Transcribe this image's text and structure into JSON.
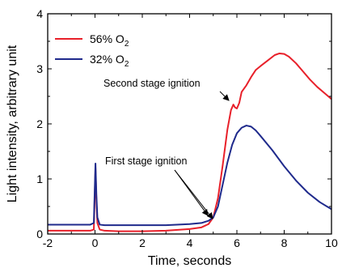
{
  "chart_data": {
    "type": "line",
    "xlabel": "Time, seconds",
    "ylabel": "Light intensity, arbitrary unit",
    "xlim": [
      -2,
      10
    ],
    "ylim": [
      0,
      4
    ],
    "xticks": [
      -2,
      0,
      2,
      4,
      6,
      8,
      10
    ],
    "yticks": [
      0,
      1,
      2,
      3,
      4
    ],
    "xtick_labels": [
      "-2",
      "0",
      "2",
      "4",
      "6",
      "8",
      "10"
    ],
    "ytick_labels": [
      "0",
      "1",
      "2",
      "3",
      "4"
    ],
    "legend_position": "top-left",
    "series": [
      {
        "name": "56% O",
        "name_subscript": "2",
        "color": "#e8202a",
        "x": [
          -2,
          -1,
          -0.2,
          -0.05,
          0.02,
          0.06,
          0.1,
          0.2,
          0.4,
          1,
          2,
          3,
          4,
          4.5,
          4.8,
          5.0,
          5.2,
          5.4,
          5.6,
          5.75,
          5.85,
          5.92,
          6.0,
          6.1,
          6.2,
          6.4,
          6.6,
          6.8,
          7.0,
          7.3,
          7.6,
          7.8,
          8.0,
          8.2,
          8.5,
          8.8,
          9.1,
          9.4,
          9.7,
          10.0
        ],
        "y": [
          0.06,
          0.06,
          0.06,
          0.08,
          1.2,
          0.6,
          0.2,
          0.08,
          0.06,
          0.05,
          0.05,
          0.06,
          0.09,
          0.12,
          0.18,
          0.3,
          0.65,
          1.25,
          1.9,
          2.25,
          2.35,
          2.3,
          2.28,
          2.38,
          2.58,
          2.7,
          2.85,
          2.98,
          3.05,
          3.15,
          3.25,
          3.28,
          3.27,
          3.22,
          3.1,
          2.95,
          2.8,
          2.67,
          2.56,
          2.45
        ]
      },
      {
        "name": "32% O",
        "name_subscript": "2",
        "color": "#1f2a8c",
        "x": [
          -2,
          -1,
          -0.2,
          -0.05,
          0.02,
          0.06,
          0.1,
          0.2,
          0.4,
          1,
          2,
          3,
          4,
          4.5,
          4.8,
          5.0,
          5.2,
          5.4,
          5.6,
          5.8,
          6.0,
          6.2,
          6.4,
          6.6,
          6.8,
          7.0,
          7.5,
          8.0,
          8.5,
          9.0,
          9.5,
          10.0
        ],
        "y": [
          0.17,
          0.17,
          0.17,
          0.2,
          1.28,
          0.7,
          0.3,
          0.17,
          0.16,
          0.16,
          0.16,
          0.16,
          0.18,
          0.2,
          0.24,
          0.3,
          0.5,
          0.9,
          1.3,
          1.62,
          1.83,
          1.93,
          1.97,
          1.95,
          1.88,
          1.78,
          1.52,
          1.23,
          0.97,
          0.75,
          0.58,
          0.45
        ]
      }
    ],
    "annotations": [
      {
        "text": "Second stage ignition",
        "x": 5.85,
        "y": 2.32
      },
      {
        "text": "First stage ignition",
        "targets": [
          [
            5.05,
            0.3
          ],
          [
            5.3,
            0.2
          ]
        ]
      }
    ]
  }
}
